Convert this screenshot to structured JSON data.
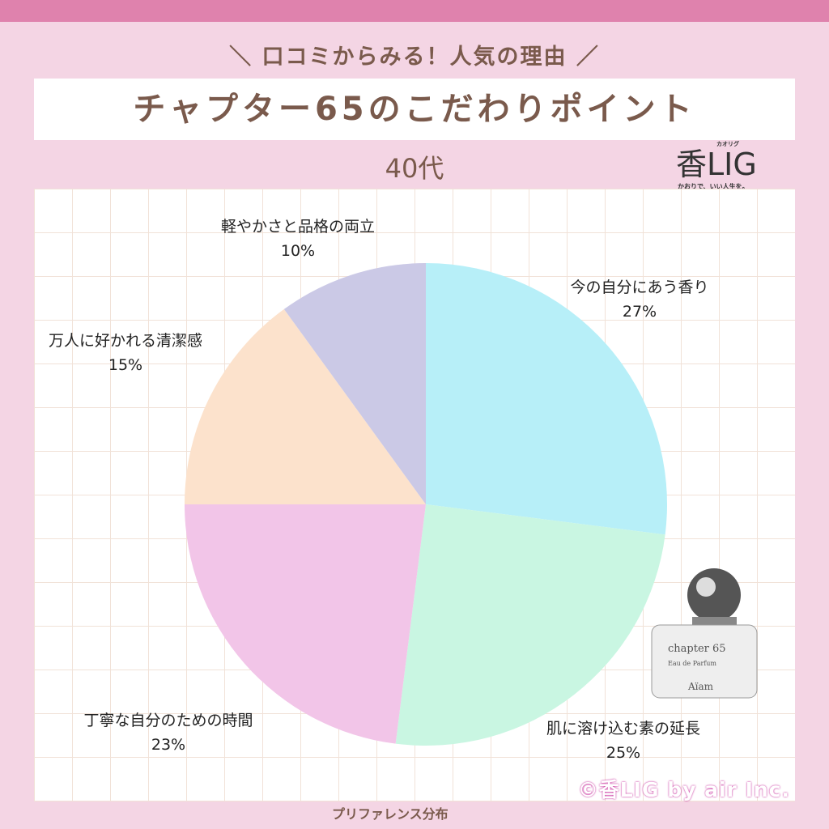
{
  "header": {
    "subtitle": "＼ 口コミからみる！人気の理由 ／",
    "title": "チャプター65のこだわりポイント",
    "age_group": "40代"
  },
  "logo": {
    "text": "香LIG",
    "ruby": "カオリグ",
    "tagline": "かおりで、いい人生を。"
  },
  "chart_data": {
    "type": "pie",
    "title": "",
    "start": "top",
    "direction": "clockwise",
    "slices": [
      {
        "label": "今の自分にあう香り",
        "value": 27,
        "display": "27%",
        "color": "#b7eff8"
      },
      {
        "label": "肌に溶け込む素の延長",
        "value": 25,
        "display": "25%",
        "color": "#c9f6e2"
      },
      {
        "label": "丁寧な自分のための時間",
        "value": 23,
        "display": "23%",
        "color": "#f2c5e8"
      },
      {
        "label": "万人に好かれる清潔感",
        "value": 15,
        "display": "15%",
        "color": "#fce2cc"
      },
      {
        "label": "軽やかさと品格の両立",
        "value": 10,
        "display": "10%",
        "color": "#cbc9e6"
      }
    ]
  },
  "product": {
    "name": "chapter 65",
    "type": "Eau de Parfum",
    "brand": "Aïam"
  },
  "footer": {
    "copyright": "©香LIG by air Inc.",
    "caption": "プリファレンス分布"
  }
}
